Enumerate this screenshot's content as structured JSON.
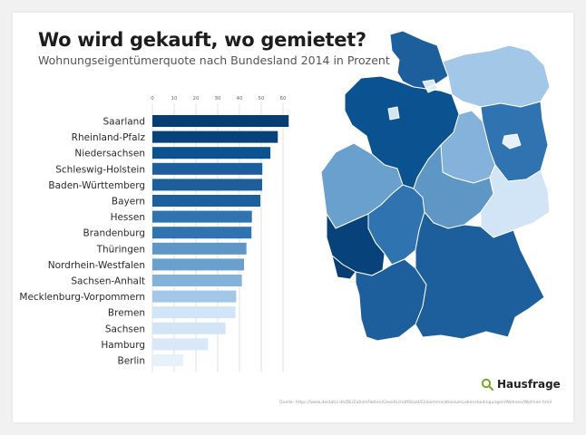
{
  "header": {
    "title": "Wo wird gekauft, wo gemietet?",
    "subtitle": "Wohnungseigentümerquote nach Bundesland 2014 in Prozent"
  },
  "chart_data": {
    "type": "bar",
    "orientation": "horizontal",
    "title": "Wo wird gekauft, wo gemietet?",
    "subtitle": "Wohnungseigentümerquote nach Bundesland 2014 in Prozent",
    "xlim": [
      0,
      60
    ],
    "ticks": [
      0,
      10,
      20,
      30,
      40,
      50,
      60
    ],
    "tick_labels": [
      "0",
      "10",
      "20",
      "30",
      "40",
      "50",
      "60"
    ],
    "grid": true,
    "categories": [
      "Saarland",
      "Rheinland-Pfalz",
      "Niedersachsen",
      "Schleswig-Holstein",
      "Baden-Württemberg",
      "Bayern",
      "Hessen",
      "Brandenburg",
      "Thüringen",
      "Nordrhein-Westfalen",
      "Sachsen-Anhalt",
      "Mecklenburg-Vorpommern",
      "Bremen",
      "Sachsen",
      "Hamburg",
      "Berlin"
    ],
    "values": [
      62.6,
      57.6,
      54.2,
      50.5,
      50.4,
      49.6,
      45.7,
      45.5,
      43.2,
      42.1,
      41.1,
      38.5,
      38.2,
      33.6,
      25.6,
      14.2
    ],
    "colors": [
      "#063e73",
      "#08427a",
      "#0b5291",
      "#1d5e9d",
      "#1d5e9d",
      "#1d5e9d",
      "#2f73b0",
      "#2f73b0",
      "#5e97c6",
      "#6aa0ce",
      "#84b2da",
      "#a3c7e6",
      "#d2e5f6",
      "#d2e5f6",
      "#d8e8f6",
      "#e7f1fa"
    ]
  },
  "map": {
    "label": "Deutschland nach Bundesland",
    "regions": [
      {
        "name": "Schleswig-Holstein",
        "color": "#1d5e9d"
      },
      {
        "name": "Mecklenburg-Vorpommern",
        "color": "#a3c7e6"
      },
      {
        "name": "Hamburg",
        "color": "#d8e8f6"
      },
      {
        "name": "Bremen",
        "color": "#d2e5f6"
      },
      {
        "name": "Niedersachsen",
        "color": "#0b5291"
      },
      {
        "name": "Brandenburg",
        "color": "#2f73b0"
      },
      {
        "name": "Berlin",
        "color": "#e7f1fa"
      },
      {
        "name": "Sachsen-Anhalt",
        "color": "#84b2da"
      },
      {
        "name": "Nordrhein-Westfalen",
        "color": "#6aa0ce"
      },
      {
        "name": "Hessen",
        "color": "#2f73b0"
      },
      {
        "name": "Thüringen",
        "color": "#5e97c6"
      },
      {
        "name": "Sachsen",
        "color": "#d2e5f6"
      },
      {
        "name": "Rheinland-Pfalz",
        "color": "#08427a"
      },
      {
        "name": "Saarland",
        "color": "#063e73"
      },
      {
        "name": "Baden-Württemberg",
        "color": "#1d5e9d"
      },
      {
        "name": "Bayern",
        "color": "#1d5e9d"
      }
    ]
  },
  "brand": {
    "name": "Hausfrage",
    "icon": "search-icon",
    "icon_color": "#79a829"
  },
  "source": "Quelle: https://www.destatis.de/DE/ZahlenFakten/GesellschaftStaat/EinkommenKonsumLebensbedingungen/Wohnen/Wohnen.html"
}
